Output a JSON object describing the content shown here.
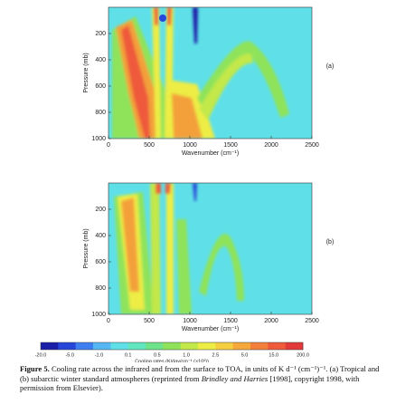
{
  "chart_data": [
    {
      "type": "heatmap",
      "annotation": "(a)",
      "x_label": "Wavenumber (cm⁻¹)",
      "y_label": "Pressure (mb)",
      "xlim": [
        0,
        2500
      ],
      "xticks": [
        0,
        500,
        1000,
        1500,
        2000,
        2500
      ],
      "ylim": [
        1000,
        0
      ],
      "yticks": [
        200,
        400,
        600,
        800,
        1000
      ]
    },
    {
      "type": "heatmap",
      "annotation": "(b)",
      "x_label": "Wavenumber (cm⁻¹)",
      "y_label": "Pressure (mb)",
      "xlim": [
        0,
        2500
      ],
      "xticks": [
        0,
        500,
        1000,
        1500,
        2000,
        2500
      ],
      "ylim": [
        1000,
        0
      ],
      "yticks": [
        200,
        400,
        600,
        800,
        1000
      ]
    },
    {
      "type": "colorbar",
      "label": "Cooling rates (K/day/cm⁻¹ (×10³))",
      "ticks": [
        "-20.0",
        "-5.0",
        "-1.0",
        "0.1",
        "0.5",
        "1.0",
        "2.5",
        "5.0",
        "15.0",
        "200.0"
      ],
      "colors": [
        "#1b1fa8",
        "#2546d8",
        "#3d7ff0",
        "#55b8f5",
        "#5fe0e8",
        "#62e6c0",
        "#6ee38a",
        "#8fe35a",
        "#c2e84a",
        "#eded45",
        "#f5cf3f",
        "#f6a83a",
        "#f3803a",
        "#ee5a3b",
        "#e23a3a"
      ]
    }
  ],
  "caption": {
    "label": "Figure 5.",
    "text1": "Cooling rate across the infrared and from the surface to TOA, in units of K d⁻¹ (cm⁻¹)⁻¹. (a) Tropical and (b) subarctic winter standard atmospheres (reprinted from ",
    "italic": "Brindley and Harries",
    "text2": " [1998], copyright 1998, with permission from Elsevier)."
  }
}
